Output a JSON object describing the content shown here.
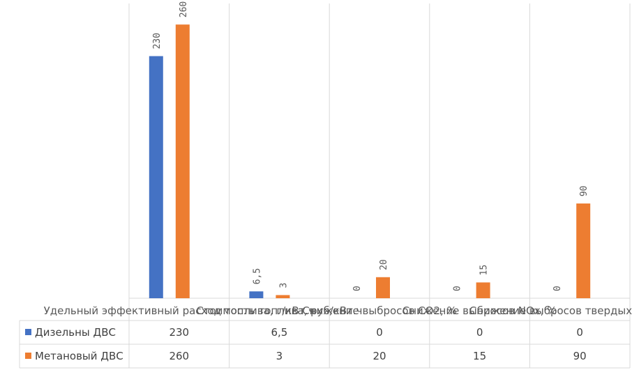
{
  "chart_data": {
    "type": "bar",
    "categories": [
      "Удельный эффективный расход топлива, г/кВт.ч",
      "Стоимость топлива, руб/кВт.ч",
      "Снижение выбросов CO2, %",
      "Снижение выбросов NOx, %",
      "Снижение выбросов твердых частиц, %"
    ],
    "series": [
      {
        "name": "Дизельны ДВС",
        "values": [
          230,
          6.5,
          0,
          0,
          0
        ],
        "labels": [
          "230",
          "6,5",
          "0",
          "0",
          "0"
        ]
      },
      {
        "name": "Метановый ДВС",
        "values": [
          260,
          3,
          20,
          15,
          90
        ],
        "labels": [
          "260",
          "3",
          "20",
          "15",
          "90"
        ]
      }
    ],
    "ylim": [
      0,
      280
    ],
    "legend": "data-table",
    "grid": false,
    "colors": [
      "#4472c4",
      "#ed7d31"
    ]
  }
}
